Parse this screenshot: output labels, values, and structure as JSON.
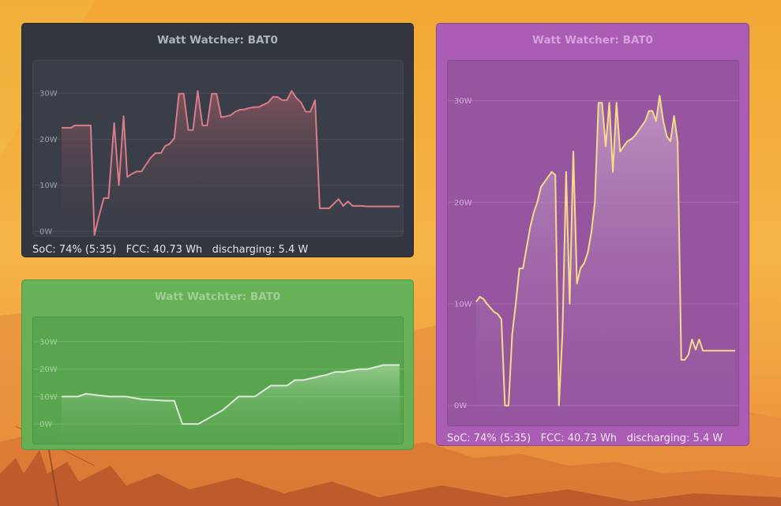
{
  "widgets": [
    {
      "id": "w1",
      "title": "Watt Watcher: BAT0",
      "status": {
        "soc": "SoC: 74% (5:35)",
        "fcc": "FCC: 40.73 Wh",
        "state": "discharging: 5.4 W"
      },
      "colors": {
        "line": "#d87c88",
        "fill_top": "#8a5560",
        "fill_bottom": "#3a3e48",
        "grid": "#4a4f59"
      },
      "chart_data": {
        "type": "area",
        "title": "Watt Watcher: BAT0",
        "ylabel": "W",
        "ylim": [
          0,
          35
        ],
        "yticks": [
          "0W",
          "10W",
          "20W",
          "30W"
        ],
        "ytick_values": [
          0,
          10,
          20,
          30
        ],
        "x": [
          0,
          0.3,
          1,
          1.4,
          2,
          2.4,
          3.1,
          3.5,
          4,
          4.5,
          5,
          5.6,
          6.1,
          6.6,
          7,
          7.5,
          8,
          8.5,
          9,
          9.5,
          10,
          10.6,
          11,
          11.5,
          12,
          12.5,
          13,
          13.5,
          14,
          14.5,
          15,
          15.5,
          16,
          16.5,
          17,
          17.5,
          18,
          18.5,
          19,
          19.5,
          20,
          20.5,
          21,
          21.5,
          22,
          22.5,
          23,
          23.5,
          24,
          24.5,
          25,
          25.5,
          26,
          26.5,
          27,
          27.5,
          28,
          28.5,
          29,
          29.5,
          30,
          30.5,
          31,
          31.5,
          32,
          32.5,
          33,
          33.5,
          34,
          34.5,
          35,
          35.5,
          36
        ],
        "values": [
          22.5,
          22.5,
          22.5,
          23,
          23,
          23,
          23,
          -0.8,
          3.5,
          7.2,
          7.2,
          23.5,
          10,
          25,
          11.8,
          12.5,
          13,
          13,
          14.5,
          16,
          17,
          17,
          18.5,
          19,
          20.2,
          29.9,
          29.9,
          22,
          22,
          30.5,
          23,
          23,
          29.9,
          29.9,
          24.8,
          25,
          25.2,
          26,
          26.4,
          26.5,
          26.8,
          27,
          27,
          27.5,
          28,
          29.2,
          29.2,
          28.5,
          28.5,
          30.5,
          29,
          28,
          26,
          26,
          28.5,
          5,
          5,
          5,
          6,
          7,
          5.5,
          6.5,
          5.5,
          5.5,
          5.5,
          5.4,
          5.4,
          5.4,
          5.4,
          5.4,
          5.4,
          5.4,
          5.4
        ]
      }
    },
    {
      "id": "w2",
      "title": "Watt Watchter: BAT0",
      "colors": {
        "line": "#dfe8dc",
        "fill_top": "#9ccf93",
        "fill_bottom": "#5aa856",
        "grid": "#6fb76a"
      },
      "chart_data": {
        "type": "area",
        "title": "Watt Watchter: BAT0",
        "ylabel": "W",
        "ylim": [
          -6,
          36
        ],
        "yticks": [
          "0W",
          "10W",
          "20W",
          "30W"
        ],
        "ytick_values": [
          0,
          10,
          20,
          30
        ],
        "x": [
          0,
          2,
          3,
          6,
          8,
          10,
          13,
          14,
          15,
          17,
          20,
          22,
          24,
          25,
          26,
          28,
          29,
          30,
          33,
          34,
          35,
          36,
          37,
          38,
          40,
          42
        ],
        "values": [
          10,
          10,
          11,
          10,
          10,
          9,
          8.5,
          8.5,
          0,
          0,
          5,
          10,
          10,
          12,
          14,
          14,
          16,
          16,
          18,
          19,
          19,
          19.5,
          20,
          20,
          21.5,
          21.5
        ]
      }
    },
    {
      "id": "w3",
      "title": "Watt Watcher: BAT0",
      "status": {
        "soc": "SoC: 74% (5:35)",
        "fcc": "FCC: 40.73 Wh",
        "state": "discharging: 5.4 W"
      },
      "colors": {
        "line": "#f2dc8a",
        "fill_top": "#c59cc6",
        "fill_bottom": "#9a5ea4",
        "grid": "#a86cb1"
      },
      "chart_data": {
        "type": "area",
        "title": "Watt Watcher: BAT0",
        "ylabel": "W",
        "ylim": [
          -1.5,
          33
        ],
        "yticks": [
          "0W",
          "10W",
          "20W",
          "30W"
        ],
        "ytick_values": [
          0,
          10,
          20,
          30
        ],
        "x": [
          0,
          0.5,
          1,
          1.5,
          2,
          2.5,
          3,
          3.5,
          4,
          4.5,
          5,
          5.5,
          6,
          6.5,
          7,
          7.5,
          8,
          8.5,
          9,
          9.5,
          10,
          10.5,
          11,
          11.5,
          12,
          12.5,
          13,
          13.5,
          14,
          14.5,
          15,
          15.5,
          16,
          16.5,
          17,
          17.5,
          18,
          18.5,
          19,
          19.5,
          20,
          20.5,
          21,
          21.5,
          22,
          22.5,
          23,
          23.5,
          24,
          24.5,
          25,
          25.5,
          26,
          26.5,
          27,
          27.5,
          28,
          28.5,
          29,
          29.5,
          30,
          30.5,
          31,
          31.5,
          32,
          32.5,
          33,
          33.5,
          34,
          34.5,
          35,
          35.5,
          36
        ],
        "values": [
          10.2,
          10.7,
          10.5,
          10,
          9.6,
          9.2,
          9,
          8.5,
          0,
          0,
          7,
          10,
          13.5,
          13.5,
          15.5,
          17.5,
          19,
          20,
          21.5,
          22,
          22.5,
          23,
          22.7,
          0,
          7.2,
          23,
          10,
          25,
          12,
          13.5,
          14,
          15,
          17,
          20,
          29.8,
          29.8,
          25.5,
          29.8,
          23,
          29.8,
          25,
          25.5,
          26,
          26.2,
          26.5,
          27,
          27.5,
          28,
          29,
          29,
          28,
          30.5,
          28,
          26.5,
          26,
          28.5,
          26,
          4.5,
          4.5,
          5,
          6.5,
          5.5,
          6.5,
          5.4,
          5.4,
          5.4,
          5.4,
          5.4,
          5.4,
          5.4,
          5.4,
          5.4,
          5.4
        ]
      }
    }
  ]
}
